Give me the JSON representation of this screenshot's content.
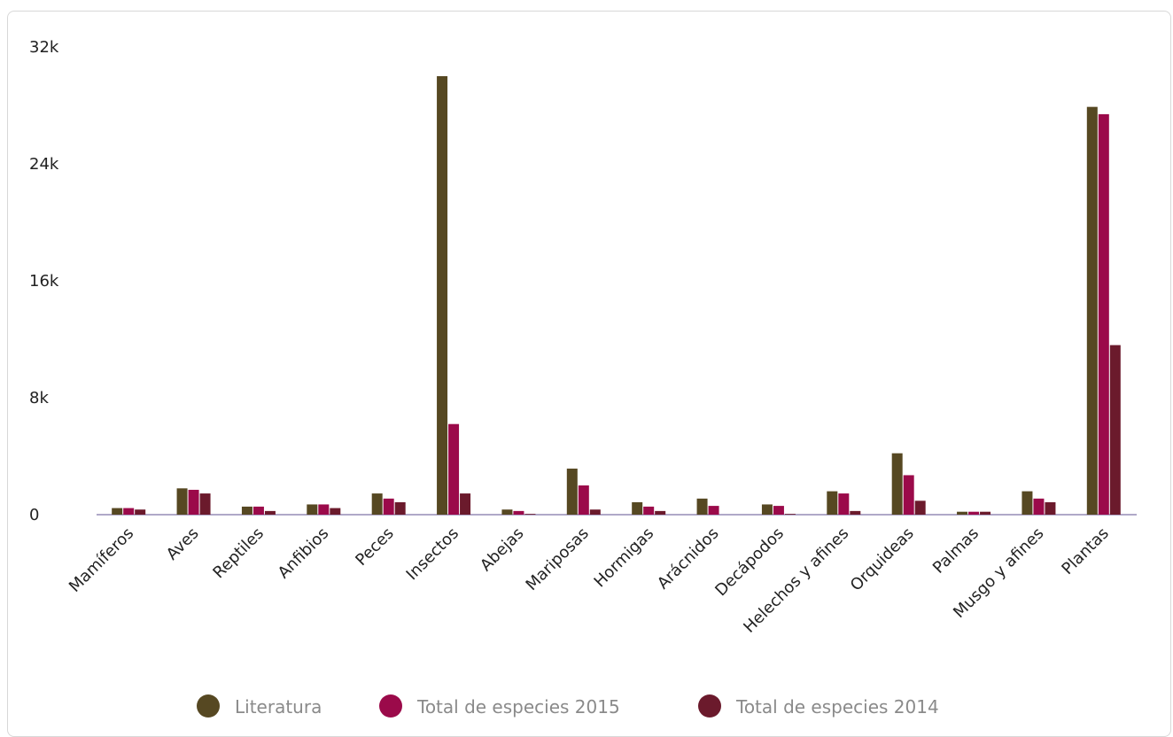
{
  "chart_data": {
    "type": "bar",
    "categories": [
      "Mamíferos",
      "Aves",
      "Reptiles",
      "Anfibios",
      "Peces",
      "Insectos",
      "Abejas",
      "Mariposas",
      "Hormigas",
      "Arácnidos",
      "Decápodos",
      "Helechos y afines",
      "Orquideas",
      "Palmas",
      "Musgo y afines",
      "Plantas"
    ],
    "series": [
      {
        "name": "Literatura",
        "color": "#564822",
        "values": [
          450,
          1800,
          550,
          700,
          1450,
          30000,
          350,
          3150,
          850,
          1100,
          700,
          1600,
          4200,
          200,
          1600,
          27900
        ]
      },
      {
        "name": "Total de especies 2015",
        "color": "#9b0a4a",
        "values": [
          450,
          1700,
          550,
          700,
          1100,
          6200,
          250,
          2000,
          550,
          600,
          600,
          1450,
          2700,
          200,
          1100,
          27400
        ]
      },
      {
        "name": "Total de especies 2014",
        "color": "#6b1a2c",
        "values": [
          350,
          1450,
          250,
          450,
          850,
          1450,
          50,
          350,
          250,
          0,
          50,
          250,
          950,
          200,
          850,
          11600
        ]
      }
    ],
    "ylim": [
      0,
      32000
    ],
    "yticks": [
      0,
      {
        "value": 8000,
        "label": "8k"
      },
      {
        "value": 16000,
        "label": "16k"
      },
      {
        "value": 24000,
        "label": "24k"
      },
      {
        "value": 32000,
        "label": "32k"
      }
    ],
    "grid": false,
    "legend": "bottom"
  }
}
